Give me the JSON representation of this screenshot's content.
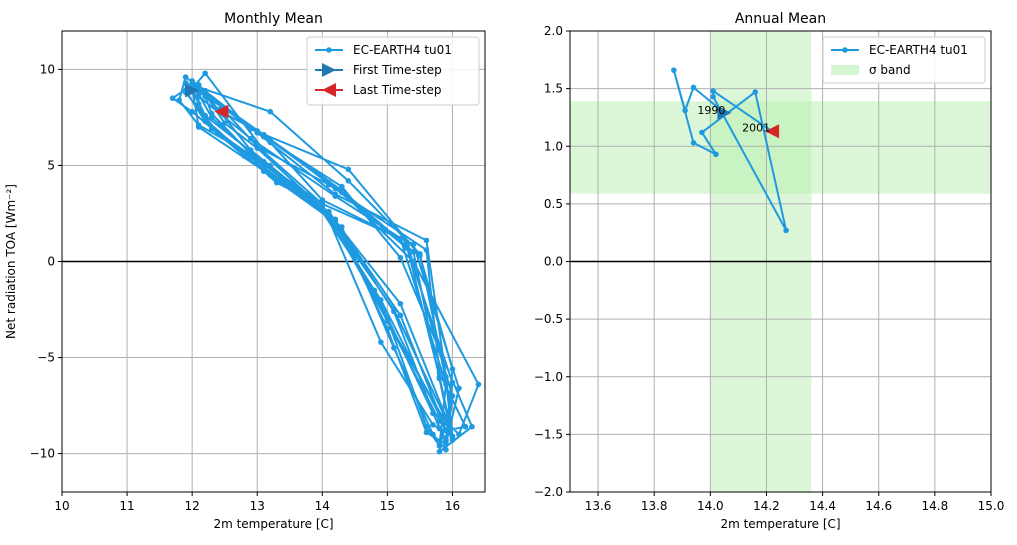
{
  "chart_data": [
    {
      "type": "line",
      "title": "Monthly Mean",
      "xlabel": "2m temperature [C]",
      "ylabel": "Net radiation TOA [Wm⁻²]",
      "xlim": [
        10,
        16.5
      ],
      "ylim": [
        -12,
        12
      ],
      "xticks": [
        "10",
        "11",
        "12",
        "13",
        "14",
        "15",
        "16"
      ],
      "yticks": [
        "−10",
        "−5",
        "0",
        "5",
        "10"
      ],
      "grid": true,
      "legend_position": "top-right",
      "legend": [
        "EC-EARTH4 tu01",
        "First Time-step",
        "Last Time-step"
      ],
      "colors": {
        "series": "#1f9ae0",
        "first": "#1f77b4",
        "last": "#d62728",
        "zero_line": "#000000"
      },
      "series": [
        {
          "name": "EC-EARTH4 tu01",
          "x": [
            12.0,
            12.2,
            13.1,
            14.1,
            15.1,
            15.9,
            16.0,
            15.8,
            15.3,
            14.2,
            13.1,
            12.3,
            12.1,
            12.4,
            12.9,
            14.0,
            14.8,
            15.7,
            15.9,
            16.0,
            15.5,
            14.4,
            12.9,
            11.9,
            11.8,
            12.1,
            13.2,
            14.2,
            15.0,
            15.6,
            15.8,
            15.9,
            15.2,
            14.0,
            13.2,
            12.1,
            12.2,
            12.5,
            13.0,
            13.9,
            14.9,
            15.8,
            16.1,
            16.4,
            15.4,
            14.3,
            13.0,
            12.0,
            11.7,
            12.0,
            12.8,
            14.1,
            15.2,
            15.9,
            16.2,
            15.8,
            15.6,
            14.1,
            13.1,
            12.2,
            12.0,
            12.3,
            13.1,
            14.3,
            15.1,
            15.7,
            15.9,
            16.0,
            15.3,
            14.2,
            12.9,
            12.1,
            12.1,
            12.2,
            13.3,
            14.0,
            14.8,
            15.8,
            16.0,
            15.9,
            15.5,
            14.4,
            13.2,
            11.9,
            11.9,
            12.4,
            13.0,
            14.2,
            15.0,
            15.6,
            15.9,
            16.1,
            15.4,
            14.0,
            13.0,
            12.2,
            12.0,
            12.1,
            13.2,
            14.1,
            15.2,
            15.9,
            15.8,
            16.3,
            15.2,
            14.3,
            13.1,
            12.0,
            12.2,
            12.3,
            12.9,
            14.0,
            14.9,
            15.7,
            16.0,
            15.9,
            15.6,
            14.2,
            13.0,
            12.1,
            11.9,
            12.2,
            13.1,
            14.2,
            15.1,
            15.8,
            15.9,
            16.0,
            15.3,
            14.1,
            13.2,
            12.0,
            12.1,
            12.3,
            13.0,
            14.1,
            15.0,
            15.9,
            16.0,
            15.8,
            15.4,
            14.3,
            13.1,
            12.45
          ],
          "y": [
            8.9,
            7.6,
            5.2,
            2.3,
            -2.5,
            -8.2,
            -9.1,
            -6.0,
            0.8,
            3.8,
            6.6,
            8.5,
            9.2,
            7.9,
            5.8,
            2.8,
            -1.5,
            -7.9,
            -9.3,
            -5.6,
            0.3,
            4.8,
            6.9,
            9.6,
            8.4,
            7.1,
            5.0,
            2.0,
            -3.0,
            -8.6,
            -9.6,
            -6.4,
            1.2,
            3.2,
            6.2,
            9.0,
            8.7,
            7.2,
            5.9,
            3.1,
            -2.0,
            -8.0,
            -9.0,
            -6.4,
            0.0,
            3.6,
            6.8,
            9.2,
            8.5,
            7.8,
            5.5,
            2.6,
            -2.8,
            -8.8,
            -8.6,
            -5.8,
            0.6,
            4.0,
            5.8,
            9.8,
            9.0,
            6.9,
            4.7,
            1.8,
            -4.5,
            -9.0,
            -9.8,
            -7.0,
            1.0,
            3.4,
            6.4,
            8.6,
            8.2,
            7.4,
            4.1,
            2.9,
            -1.8,
            -8.3,
            -9.2,
            -6.2,
            0.4,
            4.2,
            7.8,
            9.3,
            8.8,
            6.7,
            5.3,
            2.2,
            -3.5,
            -8.9,
            -9.5,
            -6.6,
            0.9,
            3.0,
            6.0,
            8.9,
            9.1,
            7.0,
            4.5,
            2.5,
            -2.2,
            -8.1,
            -9.9,
            -8.6,
            0.2,
            3.9,
            6.5,
            9.4,
            8.6,
            7.7,
            5.6,
            3.0,
            -4.2,
            -8.5,
            -9.1,
            -6.0,
            1.1,
            3.5,
            6.7,
            9.0,
            8.9,
            7.3,
            4.9,
            2.1,
            -2.6,
            -8.7,
            -9.4,
            -6.3,
            0.7,
            4.1,
            6.3,
            9.1,
            8.7,
            7.5,
            5.4,
            2.4,
            -3.1,
            -8.4,
            -9.3,
            -6.1,
            0.5,
            3.7,
            6.6,
            7.8
          ]
        }
      ]
    },
    {
      "type": "line",
      "title": "Annual Mean",
      "xlabel": "2m temperature [C]",
      "xlim": [
        13.5,
        15.0
      ],
      "ylim": [
        -2.0,
        2.0
      ],
      "xticks": [
        "13.6",
        "13.8",
        "14.0",
        "14.2",
        "14.4",
        "14.6",
        "14.8",
        "15.0"
      ],
      "yticks": [
        "−2.0",
        "−1.5",
        "−1.0",
        "−0.5",
        "0.0",
        "0.5",
        "1.0",
        "1.5",
        "2.0"
      ],
      "grid": true,
      "legend_position": "top-right",
      "legend": [
        "EC-EARTH4 tu01",
        "σ band"
      ],
      "colors": {
        "series": "#1f9ae0",
        "band": "#b8f0b0",
        "first": "#1f77b4",
        "last": "#d62728"
      },
      "sigma_band": {
        "x": [
          14.0,
          14.36
        ],
        "y": [
          0.59,
          1.39
        ]
      },
      "annotations": [
        "1990",
        "2001"
      ],
      "series": [
        {
          "name": "EC-EARTH4 tu01",
          "x": [
            14.05,
            13.94,
            13.91,
            13.87,
            13.94,
            14.02,
            13.97,
            14.16,
            14.27,
            14.01,
            14.01,
            14.22
          ],
          "y": [
            1.29,
            1.51,
            1.31,
            1.66,
            1.03,
            0.93,
            1.12,
            1.47,
            0.27,
            1.43,
            1.48,
            1.13
          ]
        }
      ]
    }
  ]
}
